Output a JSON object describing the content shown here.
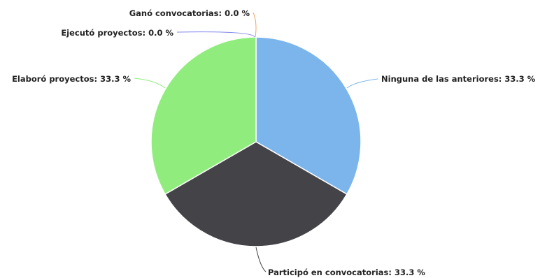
{
  "chart_data": {
    "type": "pie",
    "categories": [
      "Ninguna de las anteriores",
      "Participó en convocatorias",
      "Elaboró proyectos",
      "Ejecutó proyectos",
      "Ganó convocatorias"
    ],
    "values": [
      33.3,
      33.3,
      33.3,
      0.0,
      0.0
    ],
    "labels": [
      "Ninguna de las anteriores: 33.3 %",
      "Participó en convocatorias: 33.3 %",
      "Elaboró proyectos: 33.3 %",
      "Ejecutó proyectos: 0.0 %",
      "Ganó convocatorias: 0.0 %"
    ],
    "colors": [
      "#7cb5ec",
      "#434348",
      "#90ed7d",
      "#8085e9",
      "#f7a35c"
    ],
    "title": "",
    "legend": "none"
  }
}
